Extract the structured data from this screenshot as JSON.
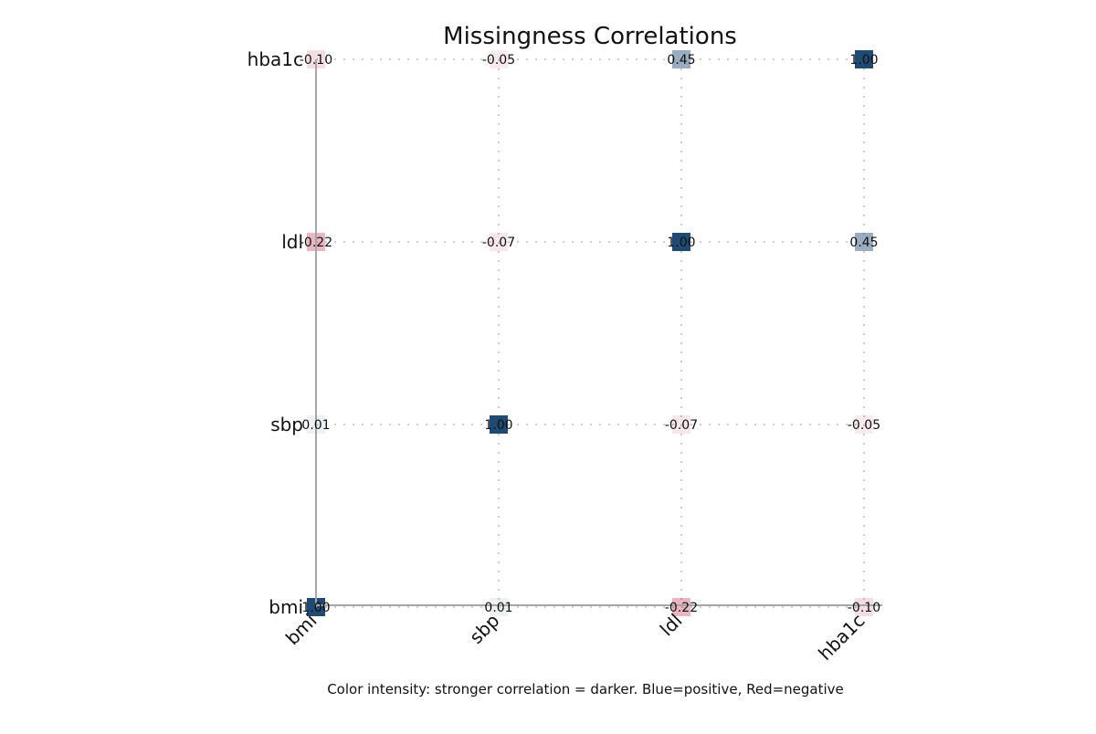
{
  "chart_data": {
    "type": "heatmap",
    "title": "Missingness Correlations",
    "caption": "Color intensity: stronger correlation = darker. Blue=positive, Red=negative",
    "x_categories": [
      "bmi",
      "sbp",
      "ldl",
      "hba1c"
    ],
    "y_categories": [
      "bmi",
      "sbp",
      "ldl",
      "hba1c"
    ],
    "matrix": [
      [
        1.0,
        0.01,
        -0.22,
        -0.1
      ],
      [
        0.01,
        1.0,
        -0.07,
        -0.05
      ],
      [
        -0.22,
        -0.07,
        1.0,
        0.45
      ],
      [
        -0.1,
        -0.05,
        0.45,
        1.0
      ]
    ],
    "value_labels": [
      [
        "1.00",
        "0.01",
        "-0.22",
        "-0.10"
      ],
      [
        "0.01",
        "1.00",
        "-0.07",
        "-0.05"
      ],
      [
        "-0.22",
        "-0.07",
        "1.00",
        "0.45"
      ],
      [
        "-0.10",
        "-0.05",
        "0.45",
        "1.00"
      ]
    ],
    "xlabel": "",
    "ylabel": "",
    "grid": true,
    "colors": {
      "positive": "#1f4a73",
      "negative": "#c0304f",
      "axis_line": "#a6a6a6",
      "grid_line": "#cccccc"
    }
  }
}
